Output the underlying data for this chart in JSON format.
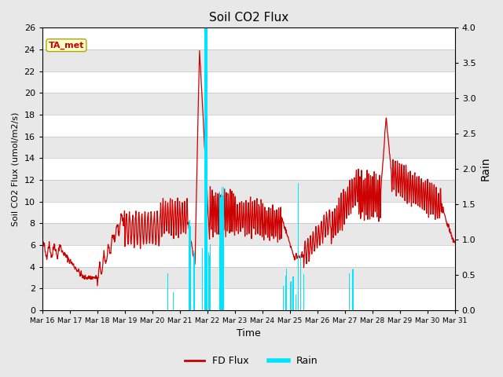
{
  "title": "Soil CO2 Flux",
  "ylabel_left": "Soil CO2 Flux (umol/m2/s)",
  "ylabel_right": "Rain",
  "xlabel": "Time",
  "ylim_left": [
    0,
    26
  ],
  "ylim_right": [
    0,
    4.0
  ],
  "yticks_left": [
    0,
    2,
    4,
    6,
    8,
    10,
    12,
    14,
    16,
    18,
    20,
    22,
    24,
    26
  ],
  "yticks_right": [
    0.0,
    0.5,
    1.0,
    1.5,
    2.0,
    2.5,
    3.0,
    3.5,
    4.0
  ],
  "flux_color": "#cc0000",
  "rain_color": "#00e5ff",
  "fig_bg_color": "#e8e8e8",
  "plot_bg_color": "#e0e0e0",
  "band_color_light": "#f0f0f0",
  "band_color_dark": "#e0e0e0",
  "annotation_text": "TA_met",
  "annotation_color": "#cc0000",
  "annotation_bg": "#ffffcc",
  "annotation_edge": "#aaaa00",
  "legend_flux_label": "FD Flux",
  "legend_rain_label": "Rain",
  "date_labels": [
    "Mar 16",
    "Mar 17",
    "Mar 18",
    "Mar 19",
    "Mar 20",
    "Mar 21",
    "Mar 22",
    "Mar 23",
    "Mar 24",
    "Mar 25",
    "Mar 26",
    "Mar 27",
    "Mar 28",
    "Mar 29",
    "Mar 30",
    "Mar 31"
  ]
}
